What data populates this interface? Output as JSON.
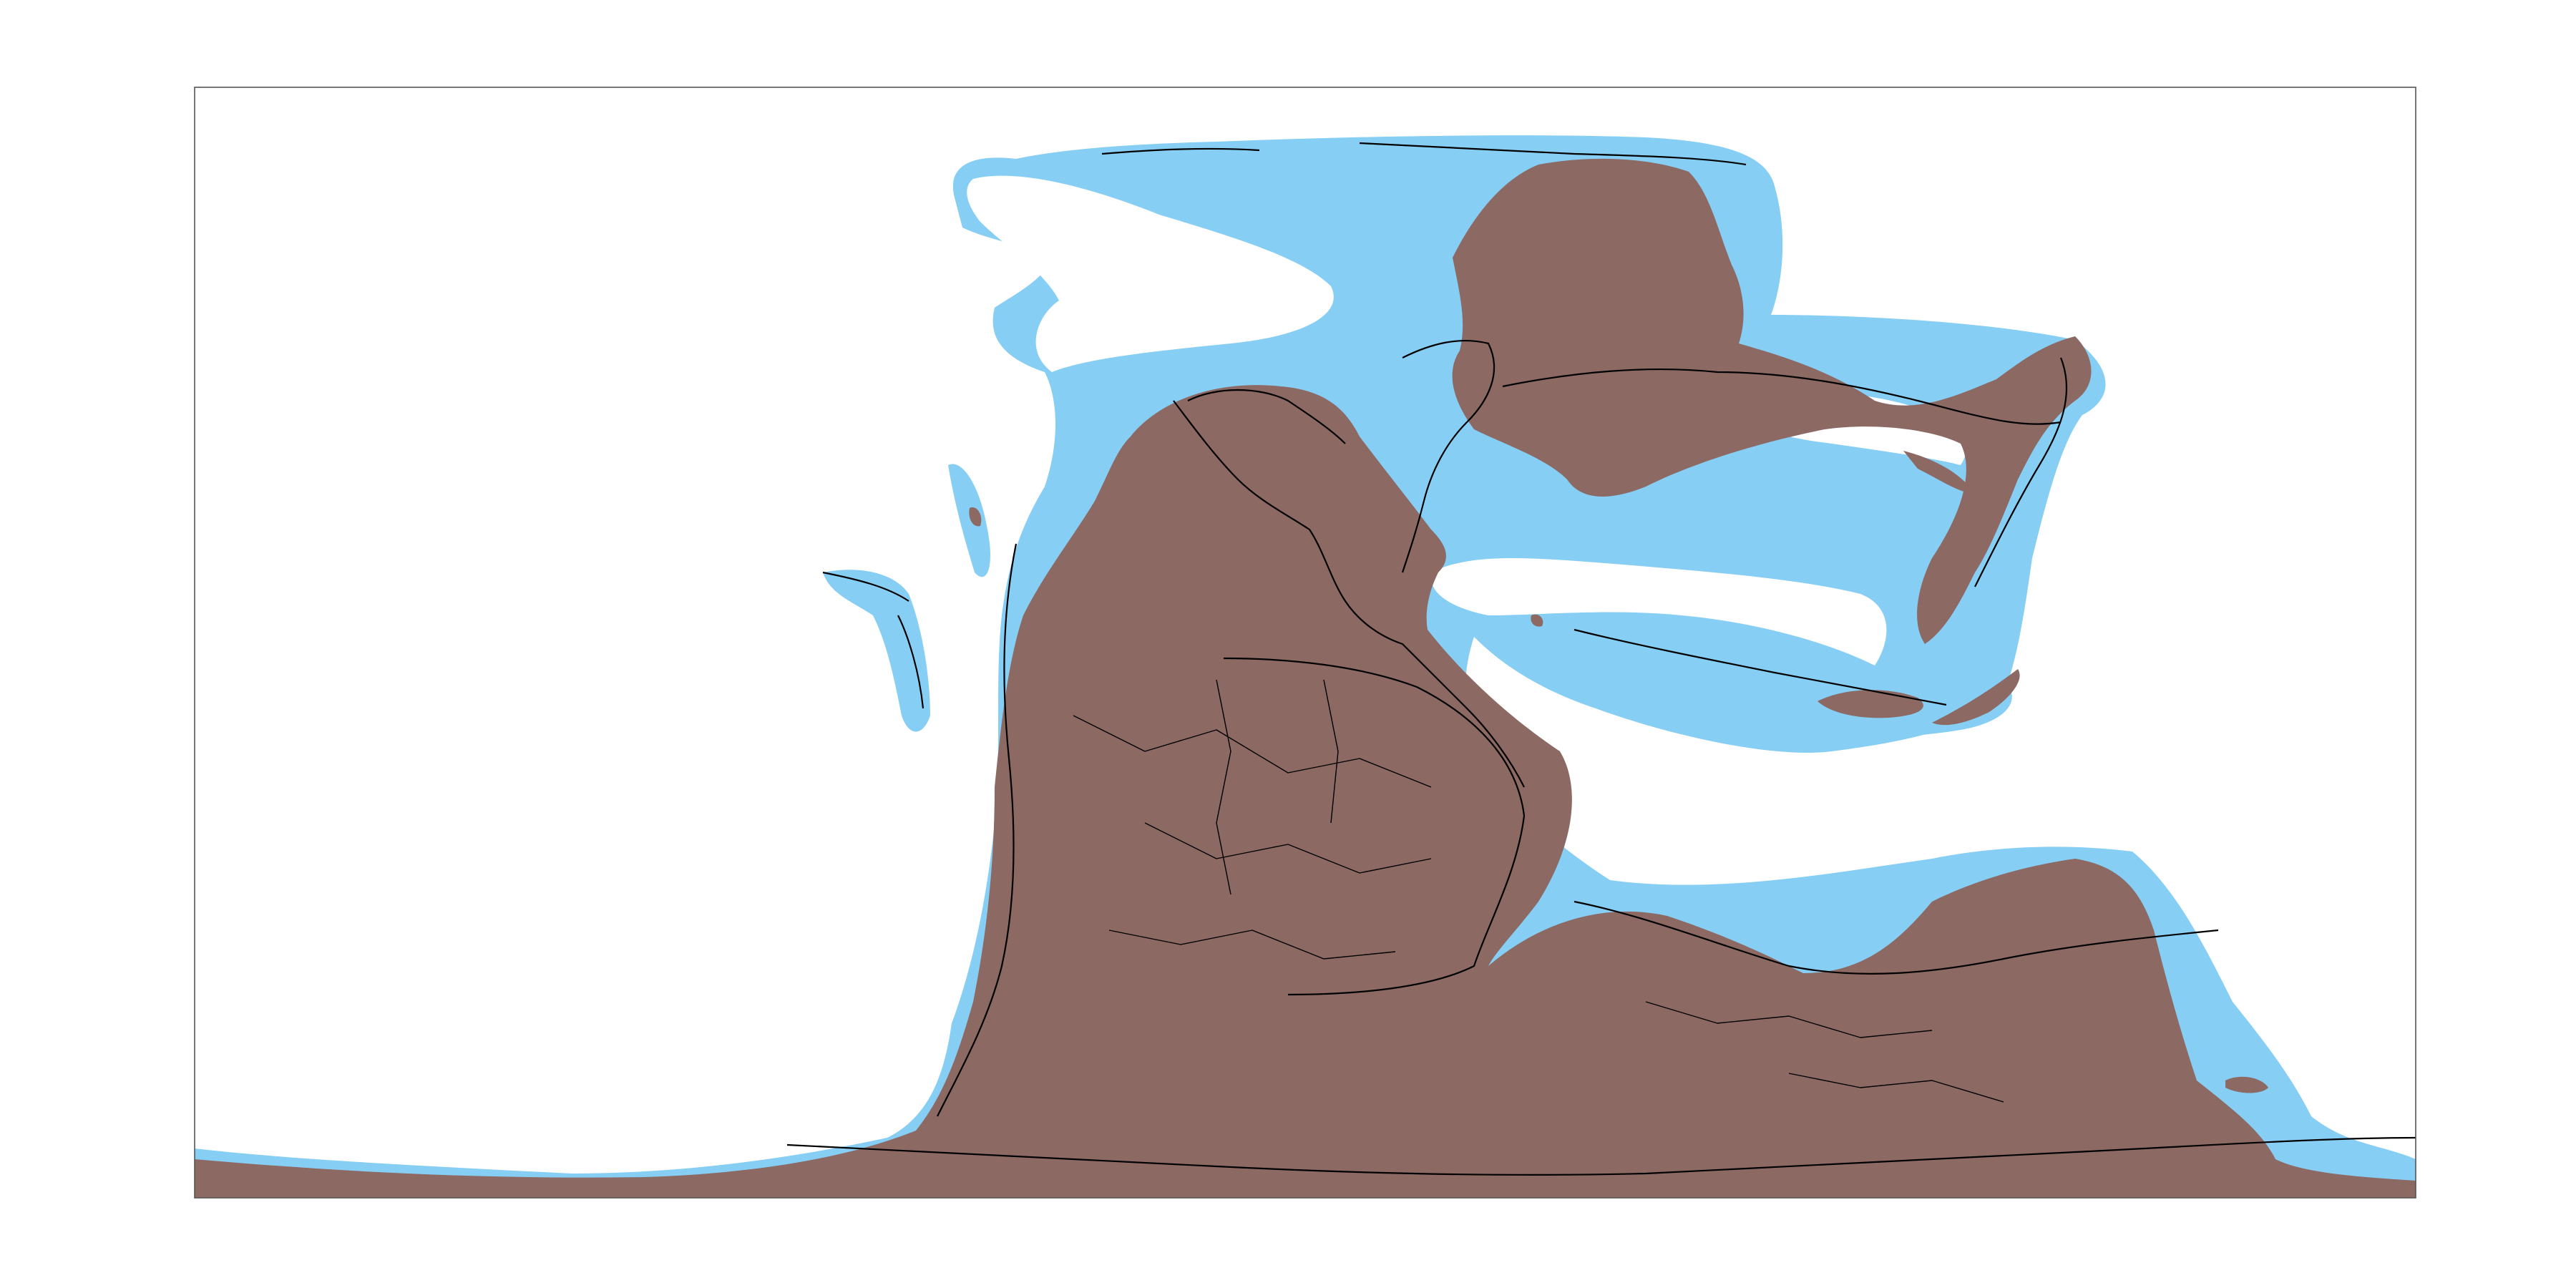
{
  "map": {
    "projection": "equirectangular",
    "kind": "paleogeographic reconstruction",
    "colors": {
      "background": "#ffffff",
      "ocean": "#ffffff",
      "shelf": "#87cef5",
      "land": "#8c6963",
      "coastline": "#000000"
    },
    "layers": [
      "shallow-sea-shelf",
      "land",
      "modern-coastlines",
      "political-borders"
    ]
  }
}
